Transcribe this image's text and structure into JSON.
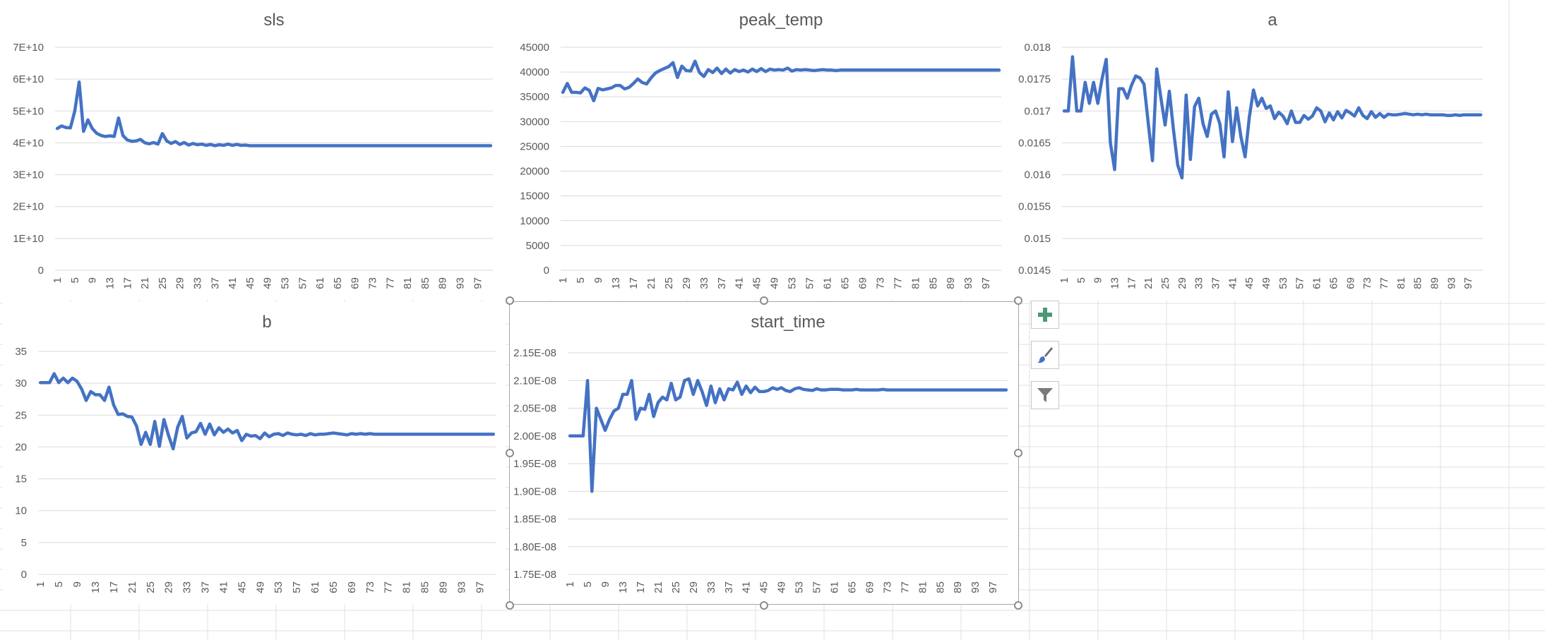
{
  "charts": [
    {
      "id": "sls",
      "title": "sls",
      "type": "line",
      "x": {
        "start": 1,
        "end": 100,
        "label_step": 4
      },
      "ylim": [
        0,
        70000000000
      ],
      "y_ticks": [
        0,
        10000000000,
        20000000000,
        30000000000,
        40000000000,
        50000000000,
        60000000000,
        70000000000
      ],
      "y_tick_labels": [
        "0",
        "1E+10",
        "2E+10",
        "3E+10",
        "4E+10",
        "5E+10",
        "6E+10",
        "7E+10"
      ],
      "values": [
        44500000000,
        45300000000,
        44800000000,
        44700000000,
        50000000000,
        59100000000,
        43600000000,
        47200000000,
        44500000000,
        43000000000,
        42300000000,
        42000000000,
        42200000000,
        42000000000,
        47800000000,
        42300000000,
        40900000000,
        40500000000,
        40600000000,
        41100000000,
        40000000000,
        39700000000,
        40100000000,
        39600000000,
        42900000000,
        40600000000,
        39800000000,
        40400000000,
        39500000000,
        40100000000,
        39300000000,
        39800000000,
        39400000000,
        39600000000,
        39200000000,
        39500000000,
        39100000000,
        39400000000,
        39200000000,
        39600000000,
        39200000000,
        39500000000,
        39200000000,
        39300000000,
        39100000000,
        39100000000,
        39100000000,
        39100000000,
        39100000000,
        39100000000,
        39100000000,
        39100000000,
        39100000000,
        39100000000,
        39100000000,
        39100000000,
        39100000000,
        39100000000,
        39100000000,
        39100000000,
        39100000000,
        39100000000,
        39100000000,
        39100000000,
        39100000000,
        39100000000,
        39100000000,
        39100000000,
        39100000000,
        39100000000,
        39100000000,
        39100000000,
        39100000000,
        39100000000,
        39100000000,
        39100000000,
        39100000000,
        39100000000,
        39100000000,
        39100000000,
        39100000000,
        39100000000,
        39100000000,
        39100000000,
        39100000000,
        39100000000,
        39100000000,
        39100000000,
        39100000000,
        39100000000,
        39100000000,
        39100000000,
        39100000000,
        39100000000,
        39100000000,
        39100000000,
        39100000000,
        39100000000,
        39100000000,
        39100000000
      ]
    },
    {
      "id": "peak_temp",
      "title": "peak_temp",
      "type": "line",
      "x": {
        "start": 1,
        "end": 100,
        "label_step": 4
      },
      "ylim": [
        0,
        45000
      ],
      "y_ticks": [
        0,
        5000,
        10000,
        15000,
        20000,
        25000,
        30000,
        35000,
        40000,
        45000
      ],
      "y_tick_labels": [
        "0",
        "5000",
        "10000",
        "15000",
        "20000",
        "25000",
        "30000",
        "35000",
        "40000",
        "45000"
      ],
      "values": [
        35900,
        37700,
        35900,
        35900,
        35800,
        36800,
        36300,
        34200,
        36700,
        36400,
        36600,
        36800,
        37300,
        37300,
        36600,
        36900,
        37700,
        38600,
        37900,
        37600,
        38800,
        39800,
        40300,
        40700,
        41100,
        41900,
        38900,
        41200,
        40300,
        40200,
        42200,
        39900,
        39100,
        40500,
        39900,
        40800,
        39700,
        40600,
        39800,
        40500,
        40100,
        40400,
        40000,
        40600,
        40100,
        40700,
        40100,
        40600,
        40400,
        40500,
        40400,
        40800,
        40200,
        40500,
        40400,
        40500,
        40400,
        40300,
        40400,
        40500,
        40400,
        40400,
        40300,
        40400,
        40400,
        40400,
        40400,
        40400,
        40400,
        40400,
        40400,
        40400,
        40400,
        40400,
        40400,
        40400,
        40400,
        40400,
        40400,
        40400,
        40400,
        40400,
        40400,
        40400,
        40400,
        40400,
        40400,
        40400,
        40400,
        40400,
        40400,
        40400,
        40400,
        40400,
        40400,
        40400,
        40400,
        40400,
        40400,
        40400
      ]
    },
    {
      "id": "a",
      "title": "a",
      "type": "line",
      "x": {
        "start": 1,
        "end": 100,
        "label_step": 4
      },
      "ylim": [
        0.0145,
        0.018
      ],
      "y_ticks": [
        0.0145,
        0.015,
        0.0155,
        0.016,
        0.0165,
        0.017,
        0.0175,
        0.018
      ],
      "y_tick_labels": [
        "0.0145",
        "0.015",
        "0.0155",
        "0.016",
        "0.0165",
        "0.017",
        "0.0175",
        "0.018"
      ],
      "values": [
        0.017,
        0.017,
        0.01785,
        0.017,
        0.017,
        0.01745,
        0.01712,
        0.01745,
        0.01712,
        0.0175,
        0.01781,
        0.0165,
        0.01608,
        0.01735,
        0.01735,
        0.0172,
        0.0174,
        0.01755,
        0.01752,
        0.01742,
        0.0168,
        0.01622,
        0.01766,
        0.0172,
        0.01678,
        0.01731,
        0.0167,
        0.01615,
        0.01595,
        0.01725,
        0.01624,
        0.01707,
        0.0172,
        0.0168,
        0.0166,
        0.01695,
        0.017,
        0.0168,
        0.01628,
        0.0173,
        0.01652,
        0.01705,
        0.0166,
        0.01628,
        0.0169,
        0.01733,
        0.01708,
        0.0172,
        0.01704,
        0.01708,
        0.01688,
        0.01698,
        0.01692,
        0.0168,
        0.017,
        0.01682,
        0.01682,
        0.01693,
        0.01687,
        0.01692,
        0.01705,
        0.017,
        0.01683,
        0.01697,
        0.01686,
        0.01699,
        0.01689,
        0.01701,
        0.01697,
        0.01692,
        0.01705,
        0.01693,
        0.01688,
        0.01699,
        0.0169,
        0.01696,
        0.0169,
        0.01695,
        0.01694,
        0.01694,
        0.01695,
        0.01696,
        0.01695,
        0.01694,
        0.01695,
        0.01694,
        0.01695,
        0.01694,
        0.01694,
        0.01694,
        0.01694,
        0.01693,
        0.01693,
        0.01694,
        0.01693,
        0.01694,
        0.01694,
        0.01694,
        0.01694,
        0.01694
      ]
    },
    {
      "id": "b",
      "title": "b",
      "type": "line",
      "x": {
        "start": 1,
        "end": 100,
        "label_step": 4
      },
      "ylim": [
        0,
        35
      ],
      "y_ticks": [
        0,
        5,
        10,
        15,
        20,
        25,
        30,
        35
      ],
      "y_tick_labels": [
        "0",
        "5",
        "10",
        "15",
        "20",
        "25",
        "30",
        "35"
      ],
      "values": [
        30.1,
        30.1,
        30.1,
        31.5,
        30.1,
        30.8,
        30.1,
        30.8,
        30.3,
        29.1,
        27.3,
        28.7,
        28.2,
        28.2,
        27.3,
        29.4,
        26.6,
        25.1,
        25.2,
        24.8,
        24.7,
        23.3,
        20.4,
        22.3,
        20.4,
        24.0,
        20.1,
        24.3,
        21.8,
        19.7,
        23.1,
        24.8,
        21.4,
        22.2,
        22.4,
        23.7,
        22.0,
        23.6,
        21.9,
        23.0,
        22.3,
        22.8,
        22.2,
        22.6,
        21.0,
        22.0,
        21.7,
        21.8,
        21.3,
        22.2,
        21.6,
        22.0,
        22.1,
        21.8,
        22.2,
        22.0,
        21.9,
        22.0,
        21.8,
        22.1,
        21.9,
        22.0,
        22.0,
        22.1,
        22.2,
        22.1,
        22.0,
        21.9,
        22.1,
        22.0,
        22.1,
        22.0,
        22.1,
        22.0,
        22.0,
        22.0,
        22.0,
        22.0,
        22.0,
        22.0,
        22.0,
        22.0,
        22.0,
        22.0,
        22.0,
        22.0,
        22.0,
        22.0,
        22.0,
        22.0,
        22.0,
        22.0,
        22.0,
        22.0,
        22.0,
        22.0,
        22.0,
        22.0,
        22.0,
        22.0
      ]
    },
    {
      "id": "start_time",
      "title": "start_time",
      "type": "line",
      "x": {
        "start": 1,
        "end": 100,
        "label_step": 4
      },
      "ylim": [
        1.75e-08,
        2.15e-08
      ],
      "y_ticks": [
        1.75e-08,
        1.8e-08,
        1.85e-08,
        1.9e-08,
        1.95e-08,
        2e-08,
        2.05e-08,
        2.1e-08,
        2.15e-08
      ],
      "y_tick_labels": [
        "1.75E-08",
        "1.80E-08",
        "1.85E-08",
        "1.90E-08",
        "1.95E-08",
        "2.00E-08",
        "2.05E-08",
        "2.10E-08",
        "2.15E-08"
      ],
      "values": [
        2e-08,
        2e-08,
        2e-08,
        2e-08,
        2.1e-08,
        1.9e-08,
        2.05e-08,
        2.03e-08,
        2.01e-08,
        2.03e-08,
        2.045e-08,
        2.05e-08,
        2.075e-08,
        2.075e-08,
        2.1e-08,
        2.03e-08,
        2.05e-08,
        2.048e-08,
        2.075e-08,
        2.035e-08,
        2.06e-08,
        2.07e-08,
        2.065e-08,
        2.095e-08,
        2.065e-08,
        2.07e-08,
        2.1e-08,
        2.103e-08,
        2.075e-08,
        2.1e-08,
        2.08e-08,
        2.055e-08,
        2.09e-08,
        2.06e-08,
        2.085e-08,
        2.065e-08,
        2.085e-08,
        2.083e-08,
        2.097e-08,
        2.075e-08,
        2.09e-08,
        2.078e-08,
        2.088e-08,
        2.08e-08,
        2.08e-08,
        2.082e-08,
        2.087e-08,
        2.084e-08,
        2.087e-08,
        2.082e-08,
        2.08e-08,
        2.085e-08,
        2.087e-08,
        2.084e-08,
        2.083e-08,
        2.082e-08,
        2.085e-08,
        2.083e-08,
        2.083e-08,
        2.084e-08,
        2.084e-08,
        2.084e-08,
        2.083e-08,
        2.083e-08,
        2.083e-08,
        2.084e-08,
        2.083e-08,
        2.083e-08,
        2.083e-08,
        2.083e-08,
        2.083e-08,
        2.084e-08,
        2.083e-08,
        2.083e-08,
        2.083e-08,
        2.083e-08,
        2.083e-08,
        2.083e-08,
        2.083e-08,
        2.083e-08,
        2.083e-08,
        2.083e-08,
        2.083e-08,
        2.083e-08,
        2.083e-08,
        2.083e-08,
        2.083e-08,
        2.083e-08,
        2.083e-08,
        2.083e-08,
        2.083e-08,
        2.083e-08,
        2.083e-08,
        2.083e-08,
        2.083e-08,
        2.083e-08,
        2.083e-08,
        2.083e-08,
        2.083e-08,
        2.083e-08
      ]
    }
  ],
  "side_buttons": [
    {
      "id": "chart-elements",
      "icon": "plus-icon"
    },
    {
      "id": "chart-styles",
      "icon": "brush-icon"
    },
    {
      "id": "chart-filters",
      "icon": "funnel-icon"
    }
  ],
  "colors": {
    "series": "#4472c4",
    "grid": "#d9d9d9",
    "text": "#595959",
    "sheet_grid": "#e1e1e1"
  }
}
